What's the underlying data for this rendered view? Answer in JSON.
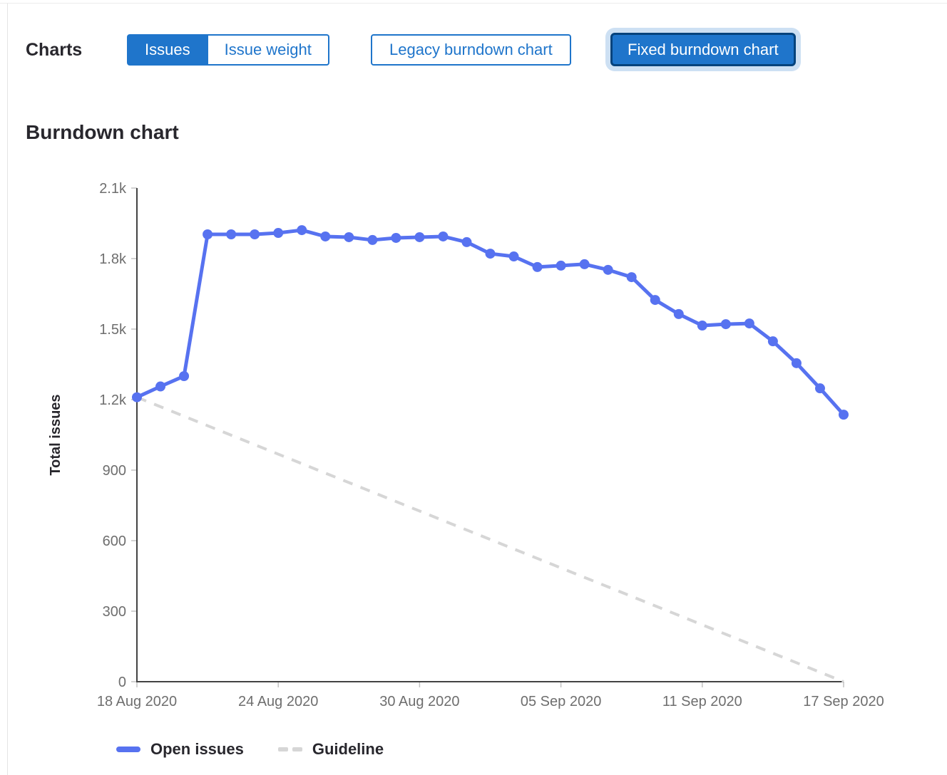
{
  "header": {
    "charts_label": "Charts",
    "issue_toggle": [
      {
        "label": "Issues",
        "selected": true
      },
      {
        "label": "Issue weight",
        "selected": false
      }
    ],
    "chart_type_buttons": [
      {
        "label": "Legacy burndown chart",
        "selected": false
      },
      {
        "label": "Fixed burndown chart",
        "selected": true,
        "focused": true
      }
    ]
  },
  "section_title": "Burndown chart",
  "chart_data": {
    "type": "line",
    "title": "Burndown chart",
    "ylabel": "Total issues",
    "ylim": [
      0,
      2100
    ],
    "days_total": 30,
    "start_date": "18 Aug 2020",
    "end_date": "17 Sep 2020",
    "grid": false,
    "legend_position": "bottom",
    "yticks": [
      {
        "value": 0,
        "label": "0"
      },
      {
        "value": 300,
        "label": "300"
      },
      {
        "value": 600,
        "label": "600"
      },
      {
        "value": 900,
        "label": "900"
      },
      {
        "value": 1200,
        "label": "1.2k"
      },
      {
        "value": 1500,
        "label": "1.5k"
      },
      {
        "value": 1800,
        "label": "1.8k"
      },
      {
        "value": 2100,
        "label": "2.1k"
      }
    ],
    "xticks": [
      {
        "day": 0,
        "label": "18 Aug 2020"
      },
      {
        "day": 6,
        "label": "24 Aug 2020"
      },
      {
        "day": 12,
        "label": "30 Aug 2020"
      },
      {
        "day": 18,
        "label": "05 Sep 2020"
      },
      {
        "day": 24,
        "label": "11 Sep 2020"
      },
      {
        "day": 30,
        "label": "17 Sep 2020"
      }
    ],
    "series": [
      {
        "name": "Open issues",
        "style": "solid",
        "color": "#5772f0",
        "values": [
          1210,
          1256,
          1300,
          1903,
          1903,
          1903,
          1909,
          1921,
          1894,
          1891,
          1879,
          1888,
          1891,
          1894,
          1870,
          1821,
          1809,
          1764,
          1770,
          1776,
          1752,
          1721,
          1624,
          1564,
          1515,
          1521,
          1524,
          1448,
          1355,
          1248,
          1136
        ]
      },
      {
        "name": "Guideline",
        "style": "dashed",
        "color": "#d6d6d6",
        "points": [
          {
            "day": 0,
            "value": 1210
          },
          {
            "day": 30,
            "value": 0
          }
        ]
      }
    ],
    "colors": {
      "axis": "#434343",
      "tick": "#c2c2c2",
      "tick_text": "#6e6e6e"
    },
    "legend": [
      {
        "label": "Open issues",
        "swatch": "solid-blue"
      },
      {
        "label": "Guideline",
        "swatch": "dashed-gray"
      }
    ]
  },
  "colors": {
    "accent_blue": "#1f75cb",
    "focus_border": "#05437c",
    "focus_halo": "#cde0f3",
    "line_blue": "#5772f0",
    "guideline_gray": "#d6d6d6"
  }
}
